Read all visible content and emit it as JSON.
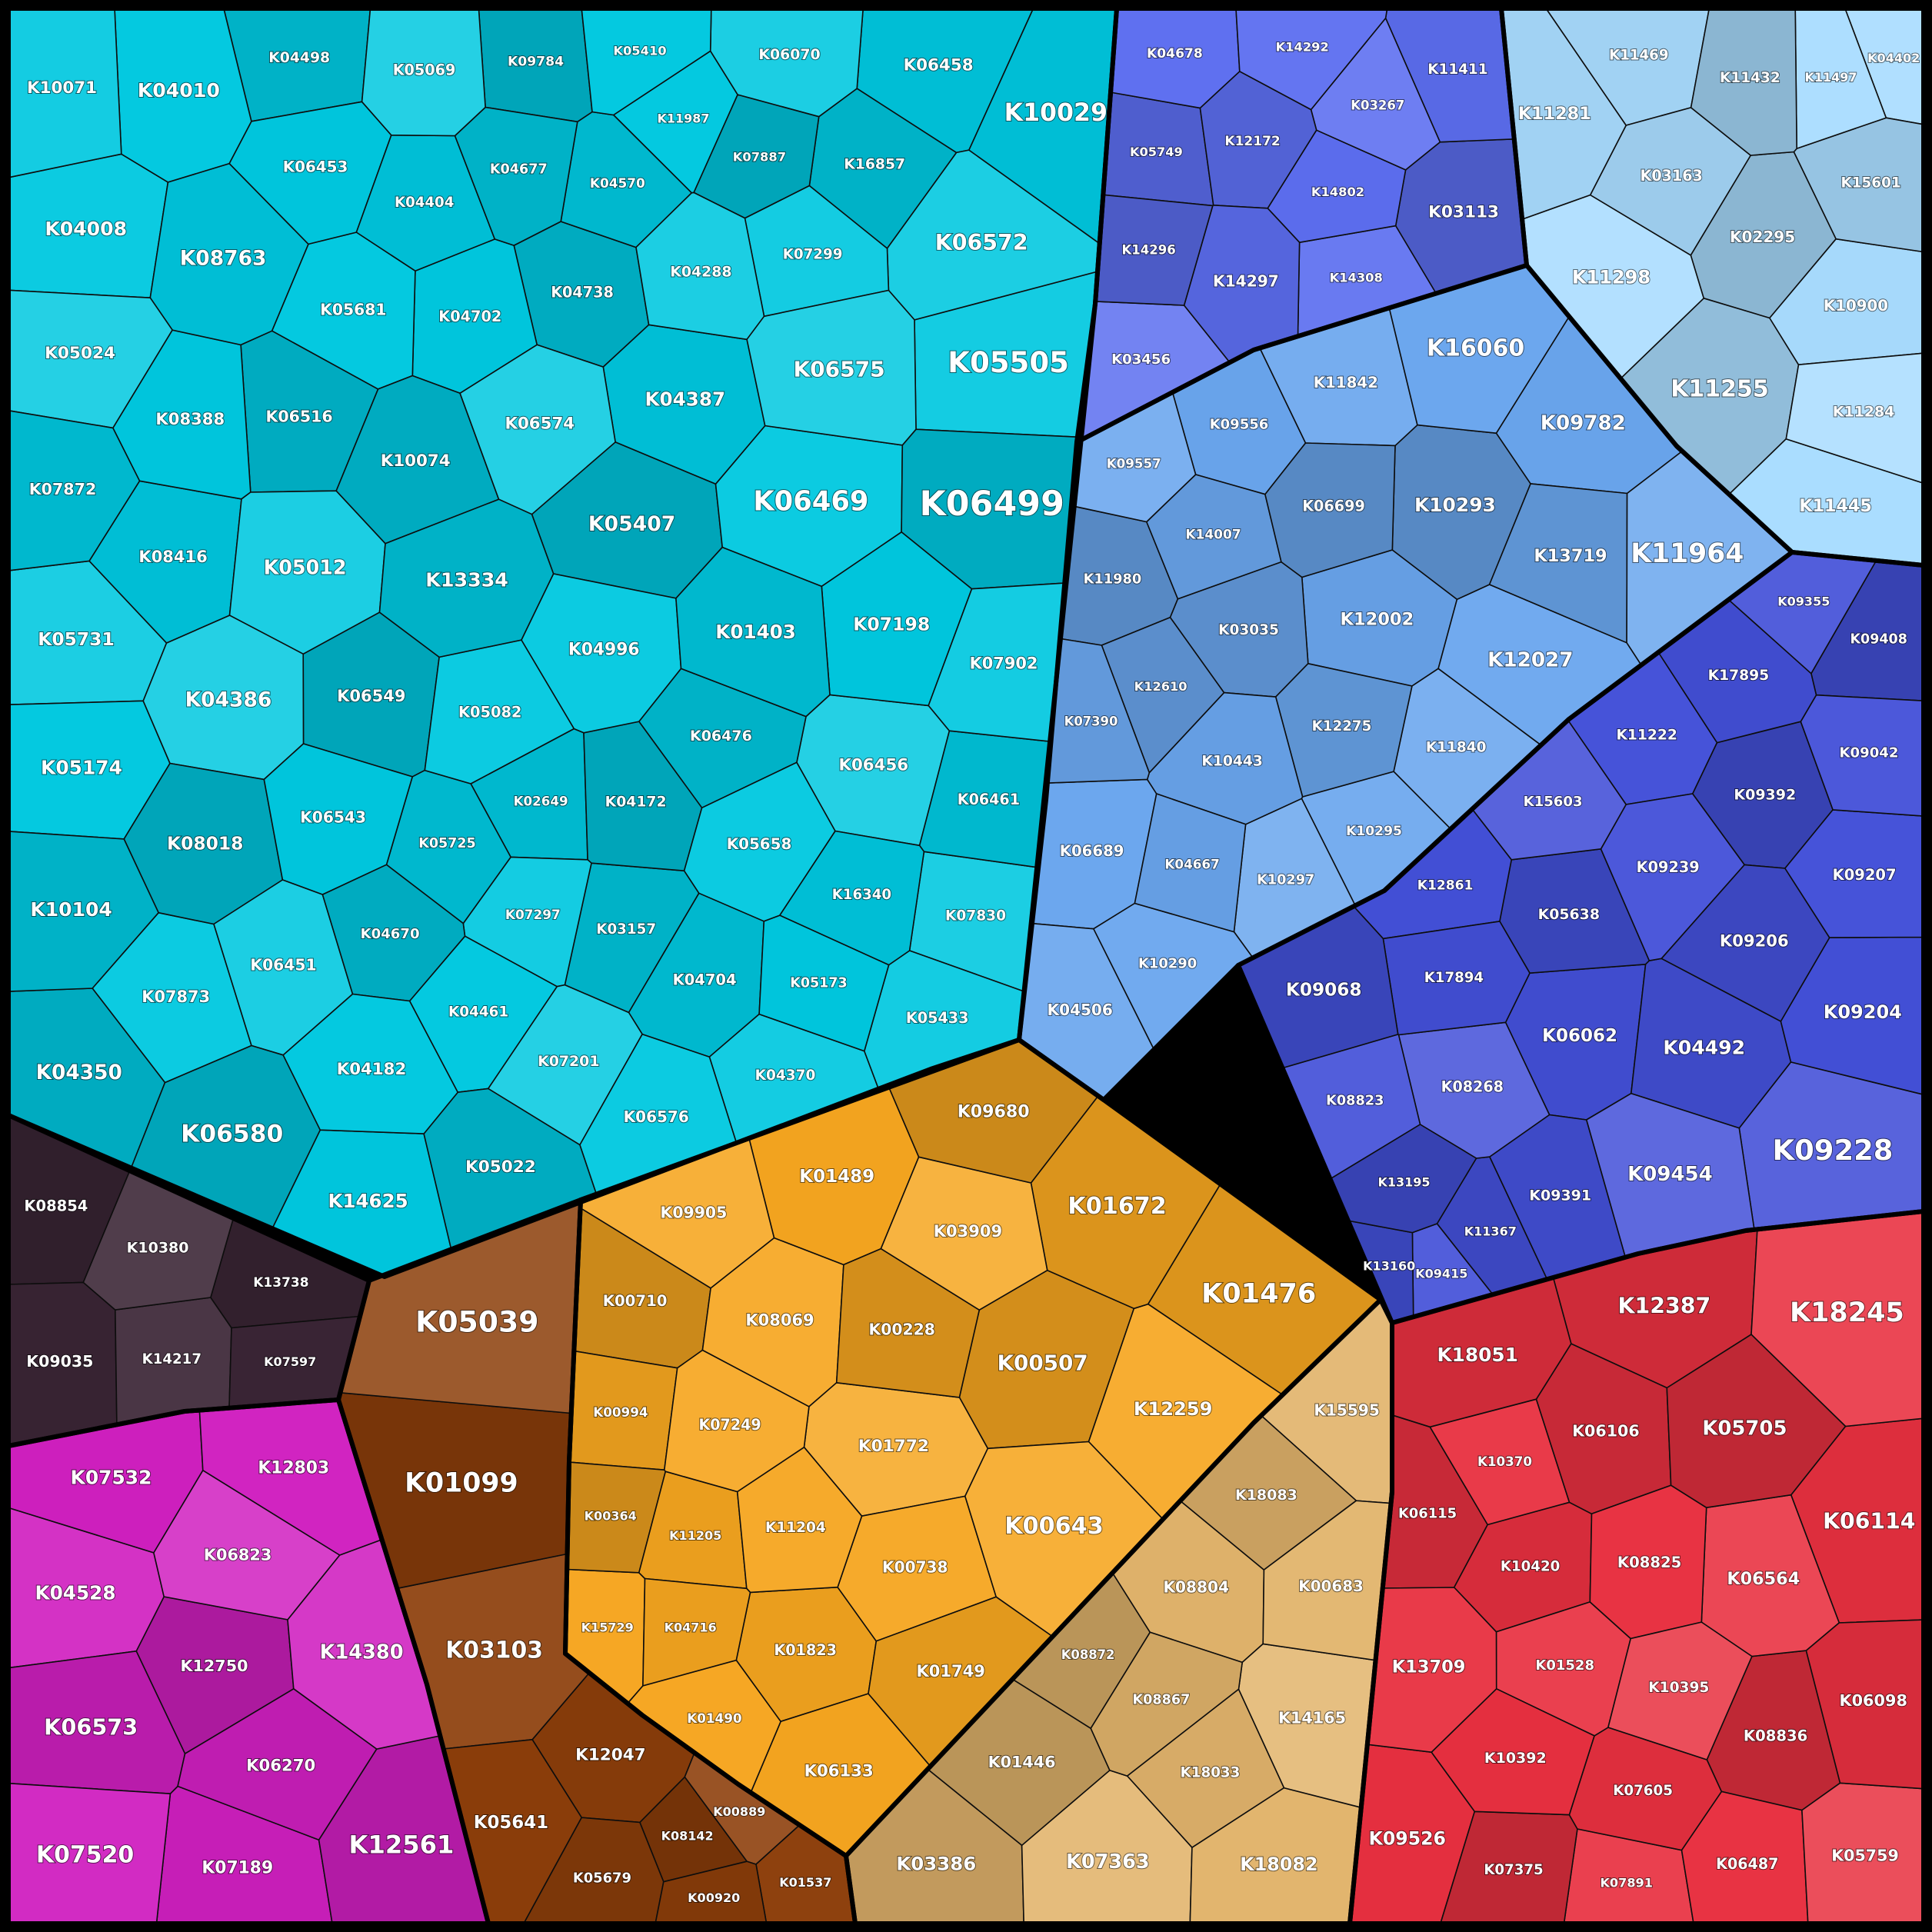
{
  "chart_data": {
    "type": "treemap",
    "groups": [
      {
        "name": "cyan",
        "color": "#00c8e0",
        "cells": [
          "K04996",
          "K05012",
          "K05024",
          "K05022",
          "K10029",
          "K05407",
          "K13334",
          "K08763",
          "K10074",
          "K10071",
          "K06458",
          "K06456",
          "K04182",
          "K06574",
          "K08388",
          "K04010",
          "K08416",
          "K06499",
          "K06549",
          "K04008",
          "K06469",
          "K10104",
          "K06572",
          "K05174",
          "K07873",
          "K07902",
          "K07872",
          "K06516",
          "K06575",
          "K06451",
          "K05681",
          "K06543",
          "K06576",
          "K06580",
          "K06453",
          "K05658",
          "K04704",
          "K05082",
          "K04702",
          "K05069",
          "K05433",
          "K04738",
          "K06461",
          "K06476",
          "K04288",
          "K07201",
          "K06070",
          "K16857",
          "K04172",
          "K07198",
          "K04498",
          "K07830",
          "K04370",
          "K08018",
          "K04461",
          "K03157",
          "K07299",
          "K04386",
          "K04387",
          "K04404",
          "K16340",
          "K04670",
          "K04677",
          "K05173",
          "K05505",
          "K04350",
          "K05731",
          "K05725",
          "K09784",
          "K04570",
          "K01403",
          "K07297",
          "K02649",
          "K07887",
          "K05410",
          "K11987",
          "K14625"
        ]
      },
      {
        "name": "blue-violet",
        "color": "#5c6ef0",
        "cells": [
          "K03113",
          "K11411",
          "K03456",
          "K04678",
          "K12172",
          "K14296",
          "K14297",
          "K03267",
          "K14292",
          "K14308",
          "K14802",
          "K05749"
        ]
      },
      {
        "name": "light-blue",
        "color": "#a9dcff",
        "cells": [
          "K02295",
          "K10900",
          "K03163",
          "K11284",
          "K11432",
          "K11298",
          "K11255",
          "K11281",
          "K15601",
          "K11469",
          "K11445",
          "K11497",
          "K04402"
        ]
      },
      {
        "name": "steel-blue",
        "color": "#6aa6ee",
        "cells": [
          "K04506",
          "K16060",
          "K12002",
          "K11842",
          "K06689",
          "K06699",
          "K10443",
          "K11964",
          "K11840",
          "K03035",
          "K12275",
          "K09556",
          "K10290",
          "K12027",
          "K11980",
          "K10297",
          "K13719",
          "K10295",
          "K14007",
          "K10293",
          "K04667",
          "K09557",
          "K07390",
          "K09782",
          "K12610"
        ]
      },
      {
        "name": "indigo",
        "color": "#4350d8",
        "cells": [
          "K09204",
          "K09207",
          "K09239",
          "K09206",
          "K08268",
          "K09391",
          "K09392",
          "K05638",
          "K09454",
          "K09068",
          "K11222",
          "K17895",
          "K17894",
          "K15603",
          "K09042",
          "K08823",
          "K06062",
          "K09408",
          "K04492",
          "K12861",
          "K13195",
          "K09355",
          "K09228",
          "K11367",
          "K09415",
          "K13160"
        ]
      },
      {
        "name": "red",
        "color": "#e83040",
        "cells": [
          "K13709",
          "K06098",
          "K06106",
          "K05759",
          "K08825",
          "K08836",
          "K05705",
          "K06564",
          "K06487",
          "K10392",
          "K12387",
          "K10395",
          "K18051",
          "K07605",
          "K07375",
          "K10420",
          "K18245",
          "K01528",
          "K06115",
          "K10370",
          "K06114",
          "K09526",
          "K07891"
        ]
      },
      {
        "name": "tan",
        "color": "#e2b46c",
        "cells": [
          "K01446",
          "K14165",
          "K08804",
          "K15595",
          "K00683",
          "K03386",
          "K18083",
          "K18033",
          "K08867",
          "K18082",
          "K08872",
          "K07363"
        ]
      },
      {
        "name": "gold",
        "color": "#f6a620",
        "cells": [
          "K12259",
          "K01476",
          "K01489",
          "K01672",
          "K09680",
          "K01772",
          "K00643",
          "K06133",
          "K03909",
          "K01749",
          "K08069",
          "K09905",
          "K00228",
          "K00738",
          "K00710",
          "K01823",
          "K07249",
          "K11204",
          "K01490",
          "K00994",
          "K11205",
          "K00364",
          "K00507",
          "K04716",
          "K15729"
        ]
      },
      {
        "name": "brown",
        "color": "#8c3e0a",
        "cells": [
          "K05039",
          "K01537",
          "K05641",
          "K05679",
          "K08142",
          "K01099",
          "K00920",
          "K12047",
          "K03103",
          "K00889"
        ]
      },
      {
        "name": "dark",
        "color": "#3a2535",
        "cells": [
          "K09035",
          "K08854",
          "K10380",
          "K14217",
          "K13738",
          "K07597"
        ]
      },
      {
        "name": "magenta",
        "color": "#d020c0",
        "cells": [
          "K07520",
          "K14380",
          "K12803",
          "K12561",
          "K07189",
          "K06270",
          "K07532",
          "K06823",
          "K12750",
          "K04528",
          "K06573"
        ]
      }
    ]
  }
}
